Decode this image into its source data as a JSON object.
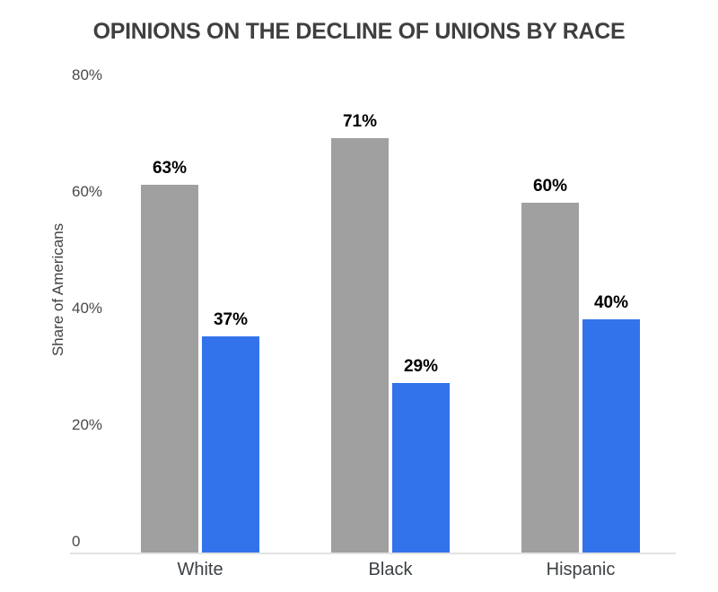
{
  "chart_data": {
    "type": "bar",
    "title": "OPINIONS ON THE DECLINE OF UNIONS BY RACE",
    "ylabel": "Share of Americans",
    "xlabel": "",
    "categories": [
      "White",
      "Black",
      "Hispanic"
    ],
    "series": [
      {
        "name": "gray-series",
        "color": "#a0a0a0",
        "values": [
          63,
          71,
          60
        ],
        "labels": [
          "63%",
          "71%",
          "60%"
        ]
      },
      {
        "name": "blue-series",
        "color": "#3273eb",
        "values": [
          37,
          29,
          40
        ],
        "labels": [
          "37%",
          "29%",
          "40%"
        ]
      }
    ],
    "ylim": [
      0,
      80
    ],
    "yticks": [
      {
        "value": 80,
        "label": "80%"
      },
      {
        "value": 60,
        "label": "60%"
      },
      {
        "value": 40,
        "label": "40%"
      },
      {
        "value": 20,
        "label": "20%"
      },
      {
        "value": 0,
        "label": "0"
      }
    ],
    "grid": false,
    "legend": "none",
    "colors": {
      "bar_gray": "#a0a0a0",
      "bar_blue": "#3273eb",
      "axis_line": "#e3e3e3",
      "title_text": "#3f3f3f",
      "tick_text": "#494949",
      "category_text": "#3c4043",
      "data_label_text": "#000000",
      "background": "#ffffff"
    }
  }
}
